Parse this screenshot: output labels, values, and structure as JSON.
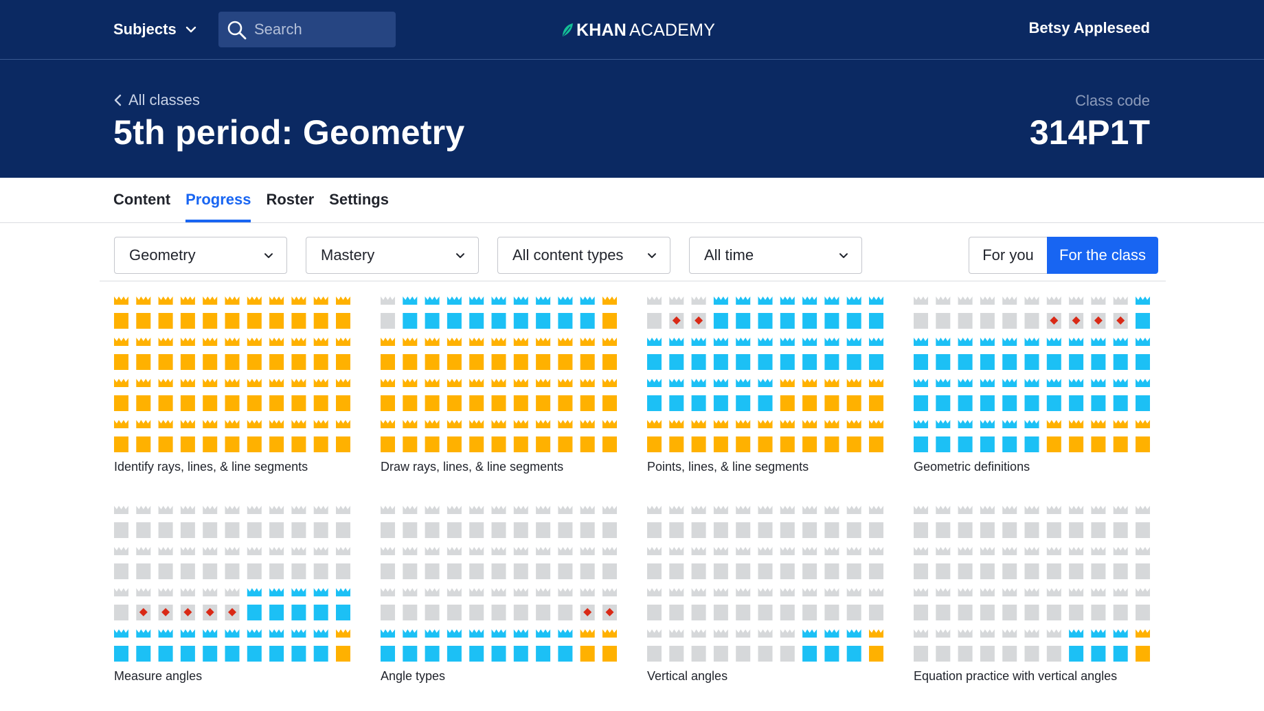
{
  "nav": {
    "subjects_label": "Subjects",
    "search_placeholder": "Search",
    "logo_khan": "KHAN",
    "logo_academy": "ACADEMY",
    "user_name": "Betsy Appleseed"
  },
  "header": {
    "back_label": "All classes",
    "title": "5th period: Geometry",
    "class_code_label": "Class code",
    "class_code": "314P1T"
  },
  "tabs": [
    {
      "label": "Content",
      "active": false
    },
    {
      "label": "Progress",
      "active": true
    },
    {
      "label": "Roster",
      "active": false
    },
    {
      "label": "Settings",
      "active": false
    }
  ],
  "filters": [
    {
      "label": "Geometry"
    },
    {
      "label": "Mastery"
    },
    {
      "label": "All content types"
    },
    {
      "label": "All time"
    }
  ],
  "view_toggle": {
    "for_you": "For you",
    "for_the_class": "For the class",
    "selected": "For the class"
  },
  "legend_codes": {
    "M": "mastered",
    "P": "proficient",
    "N": "not started",
    "X": "struggling"
  },
  "colors": {
    "nav_bg": "#0b2962",
    "accent": "#1865f2",
    "mastered": "#ffb100",
    "proficient": "#1cc0f5",
    "not_started": "#d6d8da",
    "struggling": "#d92916"
  },
  "skills": [
    {
      "label": "Identify rays, lines, & line segments",
      "rows": [
        "MMMMMMMMMMM",
        "MMMMMMMMMMM",
        "MMMMMMMMMMM",
        "MMMMMMMMMMM"
      ]
    },
    {
      "label": "Draw rays, lines, & line segments",
      "rows": [
        "NPPPPPPPPPM",
        "MMMMMMMMMMM",
        "MMMMMMMMMMM",
        "MMMMMMMMMMM"
      ]
    },
    {
      "label": "Points, lines, & line segments",
      "rows": [
        "NXXPPPPPPPP",
        "PPPPPPPPPPP",
        "PPPPPPMMMMM",
        "MMMMMMMMMMM"
      ]
    },
    {
      "label": "Geometric definitions",
      "rows": [
        "NNNNNNXXXXP",
        "PPPPPPPPPPP",
        "PPPPPPPPPPP",
        "PPPPPPMMMMM"
      ]
    },
    {
      "label": "Measure angles",
      "rows": [
        "NNNNNNNNNNN",
        "NNNNNNNNNNN",
        "NXXXXXPPPPP",
        "PPPPPPPPPPM"
      ]
    },
    {
      "label": "Angle types",
      "rows": [
        "NNNNNNNNNNN",
        "NNNNNNNNNNN",
        "NNNNNNNNNXX",
        "PPPPPPPPPMM"
      ]
    },
    {
      "label": "Vertical angles",
      "rows": [
        "NNNNNNNNNNN",
        "NNNNNNNNNNN",
        "NNNNNNNNNNN",
        "NNNNNNNPPPM"
      ]
    },
    {
      "label": "Equation practice with vertical angles",
      "rows": [
        "NNNNNNNNNNN",
        "NNNNNNNNNNN",
        "NNNNNNNNNNN",
        "NNNNNNNPPPM"
      ]
    }
  ]
}
